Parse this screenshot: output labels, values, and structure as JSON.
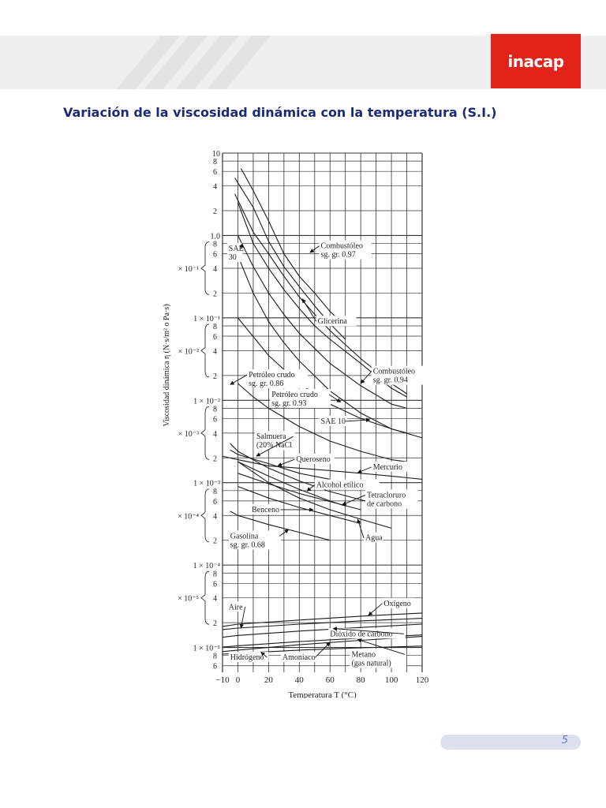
{
  "header": {
    "brand_text": "inacap",
    "brand_color": "#e2231a"
  },
  "page_title": "Variación de la viscosidad dinámica con la temperatura (S.I.)",
  "page_number": "5",
  "chart_data": {
    "type": "line",
    "scale": "log-y",
    "grid": true,
    "xlabel": "Temperatura T (°C)",
    "ylabel": "Viscosidad dinámica η   (N·s/m² o Pa·s)",
    "xlim": [
      -10,
      120
    ],
    "ylim": [
      5e-06,
      10
    ],
    "x_ticks": [
      "−10",
      "0",
      "20",
      "40",
      "60",
      "80",
      "100",
      "120"
    ],
    "y_decade_labels": [
      "10",
      "1.0",
      "1 × 10⁻¹",
      "1 × 10⁻²",
      "1 × 10⁻³",
      "1 × 10⁻⁴",
      "1 × 10⁻⁵"
    ],
    "y_minor_labels": [
      "8",
      "6",
      "4",
      "2"
    ],
    "y_bracket_labels": [
      "× 10⁻¹",
      "× 10⁻²",
      "× 10⁻³",
      "× 10⁻⁴",
      "× 10⁻⁵"
    ],
    "series": [
      {
        "name": "Combustóleo sg. gr. 0.97",
        "x": [
          2,
          10,
          20,
          30,
          40,
          50,
          60,
          70
        ],
        "y": [
          6.5,
          3.5,
          1.5,
          0.6,
          0.32,
          0.2,
          0.12,
          0.08
        ]
      },
      {
        "name": "Combustóleo sg. gr. 0.97 (b)",
        "x": [
          -2,
          10,
          20,
          30,
          40,
          50,
          60,
          70
        ],
        "y": [
          5,
          2.2,
          0.85,
          0.42,
          0.24,
          0.14,
          0.085,
          0.055
        ]
      },
      {
        "name": "SAE 30",
        "x": [
          0,
          10,
          20,
          30,
          40,
          50,
          60,
          80,
          100,
          110
        ],
        "y": [
          2.5,
          0.8,
          0.4,
          0.22,
          0.13,
          0.08,
          0.055,
          0.028,
          0.014,
          0.011
        ]
      },
      {
        "name": "Glicerina",
        "x": [
          -2,
          10,
          20,
          30,
          40,
          50,
          60,
          80,
          100,
          110
        ],
        "y": [
          3.2,
          1.1,
          0.6,
          0.32,
          0.18,
          0.11,
          0.07,
          0.032,
          0.016,
          0.012
        ]
      },
      {
        "name": "Combustóleo sg. gr. 0.94",
        "x": [
          0,
          10,
          20,
          30,
          40,
          60,
          80,
          100,
          110
        ],
        "y": [
          1.0,
          0.42,
          0.2,
          0.11,
          0.065,
          0.028,
          0.015,
          0.009,
          0.008
        ]
      },
      {
        "name": "SAE 10",
        "x": [
          -2,
          10,
          20,
          30,
          40,
          60,
          80,
          100,
          120
        ],
        "y": [
          0.7,
          0.2,
          0.09,
          0.05,
          0.03,
          0.013,
          0.007,
          0.0045,
          0.0035
        ]
      },
      {
        "name": "Petróleo crudo sg. gr. 0.86",
        "x": [
          0,
          10,
          20,
          40,
          60,
          80,
          100,
          110
        ],
        "y": [
          0.016,
          0.011,
          0.008,
          0.0048,
          0.0032,
          0.0024,
          0.0019,
          0.0018
        ]
      },
      {
        "name": "Petróleo crudo sg. gr. 0.93",
        "x": [
          0,
          20,
          40,
          60,
          80,
          100,
          110
        ],
        "y": [
          0.1,
          0.035,
          0.016,
          0.009,
          0.006,
          0.0045,
          0.004
        ]
      },
      {
        "name": "Salmuera (20% NaCl)",
        "x": [
          -5,
          0,
          20,
          40,
          60,
          80,
          100
        ],
        "y": [
          0.003,
          0.0024,
          0.0015,
          0.00105,
          0.00078,
          0.00062,
          0.0005
        ]
      },
      {
        "name": "Queroseno",
        "x": [
          -5,
          0,
          20,
          40,
          60
        ],
        "y": [
          0.0025,
          0.0022,
          0.0017,
          0.0013,
          0.0011
        ]
      },
      {
        "name": "Mercurio",
        "x": [
          -10,
          0,
          20,
          40,
          60,
          80,
          100,
          120
        ],
        "y": [
          0.0021,
          0.0019,
          0.0016,
          0.0015,
          0.0014,
          0.0013,
          0.0012,
          0.0011
        ]
      },
      {
        "name": "Alcohol etílico",
        "x": [
          0,
          20,
          40,
          60,
          70
        ],
        "y": [
          0.0018,
          0.0012,
          0.00083,
          0.0006,
          0.00052
        ]
      },
      {
        "name": "Tetracloruro de carbono",
        "x": [
          0,
          20,
          40,
          60,
          80
        ],
        "y": [
          0.0013,
          0.00097,
          0.00074,
          0.00059,
          0.00047
        ]
      },
      {
        "name": "Agua",
        "x": [
          0,
          20,
          40,
          60,
          80,
          100
        ],
        "y": [
          0.0018,
          0.001,
          0.00065,
          0.00047,
          0.00036,
          0.00028
        ]
      },
      {
        "name": "Benceno",
        "x": [
          0,
          20,
          40,
          60,
          80
        ],
        "y": [
          0.0009,
          0.00065,
          0.0005,
          0.0004,
          0.00032
        ]
      },
      {
        "name": "Gasolina sg. gr. 0.68",
        "x": [
          -5,
          0,
          20,
          40,
          60
        ],
        "y": [
          0.00045,
          0.0004,
          0.00031,
          0.00025,
          0.0002
        ]
      },
      {
        "name": "Oxígeno",
        "x": [
          -10,
          0,
          40,
          80,
          120
        ],
        "y": [
          1.8e-05,
          1.92e-05,
          2.15e-05,
          2.4e-05,
          2.62e-05
        ]
      },
      {
        "name": "Aire",
        "x": [
          -10,
          0,
          40,
          80,
          120
        ],
        "y": [
          1.65e-05,
          1.72e-05,
          1.92e-05,
          2.1e-05,
          2.26e-05
        ]
      },
      {
        "name": "Dióxido de carbono",
        "x": [
          -10,
          0,
          40,
          80,
          120
        ],
        "y": [
          1.33e-05,
          1.4e-05,
          1.58e-05,
          1.75e-05,
          1.92e-05
        ]
      },
      {
        "name": "Metano (gas natural)",
        "x": [
          -10,
          0,
          40,
          80,
          120
        ],
        "y": [
          1.01e-05,
          1.05e-05,
          1.18e-05,
          1.3e-05,
          1.42e-05
        ]
      },
      {
        "name": "Amoniaco",
        "x": [
          -10,
          0,
          40,
          80,
          120
        ],
        "y": [
          8.9e-06,
          9.3e-06,
          1.08e-05,
          1.22e-05,
          1.36e-05
        ]
      },
      {
        "name": "Hidrógeno",
        "x": [
          -10,
          0,
          40,
          80,
          120
        ],
        "y": [
          8.3e-06,
          8.5e-06,
          9.3e-06,
          9.9e-06,
          1.04e-05
        ]
      }
    ],
    "annotations": [
      {
        "lines": [
          "Combustóleo",
          "sg. gr. 0.97"
        ],
        "x": 54,
        "y": 0.7,
        "ax": 47,
        "ay": 0.62
      },
      {
        "lines": [
          "SAE",
          "30"
        ],
        "x": -6,
        "y": 0.65,
        "ax": 3,
        "ay": 0.8
      },
      {
        "lines": [
          "Glicerina"
        ],
        "x": 52,
        "y": 0.085,
        "ax": 42,
        "ay": 0.17
      },
      {
        "lines": [
          "Combustóleo",
          "sg. gr. 0.94"
        ],
        "x": 88,
        "y": 0.021,
        "ax": 80,
        "ay": 0.016
      },
      {
        "lines": [
          "Petróleo crudo",
          "sg. gr. 0.86"
        ],
        "x": 7,
        "y": 0.019,
        "ax": -5,
        "ay": 0.0155
      },
      {
        "lines": [
          "Petróleo crudo",
          "sg. gr. 0.93"
        ],
        "x": 22,
        "y": 0.011,
        "ax": 67,
        "ay": 0.0095
      },
      {
        "lines": [
          "SAE 10"
        ],
        "x": 54,
        "y": 0.0052,
        "ax": 86,
        "ay": 0.0058
      },
      {
        "lines": [
          "Salmuera",
          "(20% NaCl"
        ],
        "x": 12,
        "y": 0.0034,
        "ax": 12,
        "ay": 0.0021
      },
      {
        "lines": [
          "Queroseno"
        ],
        "x": 38,
        "y": 0.0018,
        "ax": 26,
        "ay": 0.0016
      },
      {
        "lines": [
          "Mercurio"
        ],
        "x": 88,
        "y": 0.00145,
        "ax": 78,
        "ay": 0.00132
      },
      {
        "lines": [
          "Alcohol etílico"
        ],
        "x": 51,
        "y": 0.00088,
        "ax": 45,
        "ay": 0.00079
      },
      {
        "lines": [
          "Tetracloruro",
          "de carbono"
        ],
        "x": 84,
        "y": 0.00066,
        "ax": 68,
        "ay": 0.00054
      },
      {
        "lines": [
          "Benceno"
        ],
        "x": 9,
        "y": 0.00044,
        "ax": 49,
        "ay": 0.00047
      },
      {
        "lines": [
          "Gasolina",
          "sg. gr. 0.68"
        ],
        "x": -5,
        "y": 0.00021,
        "ax": 33,
        "ay": 0.00027
      },
      {
        "lines": [
          "Agua"
        ],
        "x": 83,
        "y": 0.0002,
        "ax": 78,
        "ay": 0.00036
      },
      {
        "lines": [
          "Oxígeno"
        ],
        "x": 95,
        "y": 3.2e-05,
        "ax": 85,
        "ay": 2.45e-05
      },
      {
        "lines": [
          "Aire"
        ],
        "x": -6,
        "y": 2.9e-05,
        "ax": 2,
        "ay": 1.72e-05
      },
      {
        "lines": [
          "Dióxido de carbono"
        ],
        "x": 60,
        "y": 1.37e-05,
        "ax": 62,
        "ay": 1.7e-05
      },
      {
        "lines": [
          "Hidrógeno"
        ],
        "x": -5,
        "y": 7.1e-06,
        "ax": 15,
        "ay": 8.8e-06
      },
      {
        "lines": [
          "Amoniaco"
        ],
        "x": 29,
        "y": 7.1e-06,
        "ax": 60,
        "ay": 1.15e-05
      },
      {
        "lines": [
          "Metano",
          "(gas natural)"
        ],
        "x": 74,
        "y": 7.7e-06,
        "ax": 78,
        "ay": 1.25e-05
      }
    ]
  }
}
